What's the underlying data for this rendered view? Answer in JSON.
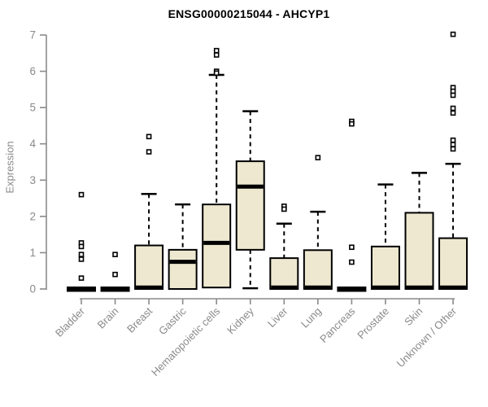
{
  "chart_data": {
    "type": "boxplot",
    "title": "ENSG00000215044 - AHCYP1",
    "ylabel": "Expression",
    "xlabel": "",
    "ylim": [
      0,
      7
    ],
    "yticks": [
      0,
      1,
      2,
      3,
      4,
      5,
      6,
      7
    ],
    "grid": false,
    "legend": "none",
    "categories": [
      "Bladder",
      "Brain",
      "Breast",
      "Gastric",
      "Hematopoietic cells",
      "Kidney",
      "Liver",
      "Lung",
      "Pancreas",
      "Prostate",
      "Skin",
      "Unknown / Other"
    ],
    "boxes": [
      {
        "category": "Bladder",
        "whisker_low": 0,
        "q1": 0,
        "median": 0,
        "q3": 0,
        "whisker_high": 0,
        "outliers": [
          2.6,
          1.27,
          1.17,
          0.95,
          0.82,
          0.3
        ]
      },
      {
        "category": "Brain",
        "whisker_low": 0,
        "q1": 0,
        "median": 0,
        "q3": 0,
        "whisker_high": 0,
        "outliers": [
          0.95,
          0.4
        ]
      },
      {
        "category": "Breast",
        "whisker_low": 0,
        "q1": 0,
        "median": 0.04,
        "q3": 1.2,
        "whisker_high": 2.62,
        "outliers": [
          4.2,
          3.78
        ]
      },
      {
        "category": "Gastric",
        "whisker_low": 0,
        "q1": 0,
        "median": 0.75,
        "q3": 1.08,
        "whisker_high": 2.33,
        "outliers": []
      },
      {
        "category": "Hematopoietic cells",
        "whisker_low": 0,
        "q1": 0.04,
        "median": 1.27,
        "q3": 2.33,
        "whisker_high": 5.9,
        "outliers": [
          6.57,
          6.45,
          6.0,
          5.95
        ]
      },
      {
        "category": "Kidney",
        "whisker_low": 0.02,
        "q1": 1.08,
        "median": 2.82,
        "q3": 3.52,
        "whisker_high": 4.9,
        "outliers": []
      },
      {
        "category": "Liver",
        "whisker_low": 0,
        "q1": 0,
        "median": 0.04,
        "q3": 0.85,
        "whisker_high": 1.8,
        "outliers": [
          2.28,
          2.2
        ]
      },
      {
        "category": "Lung",
        "whisker_low": 0,
        "q1": 0,
        "median": 0.04,
        "q3": 1.07,
        "whisker_high": 2.13,
        "outliers": [
          3.62
        ]
      },
      {
        "category": "Pancreas",
        "whisker_low": 0,
        "q1": 0,
        "median": 0,
        "q3": 0,
        "whisker_high": 0,
        "outliers": [
          4.62,
          4.55,
          1.15,
          0.74
        ]
      },
      {
        "category": "Prostate",
        "whisker_low": 0,
        "q1": 0,
        "median": 0.04,
        "q3": 1.17,
        "whisker_high": 2.88,
        "outliers": []
      },
      {
        "category": "Skin",
        "whisker_low": 0,
        "q1": 0,
        "median": 0.04,
        "q3": 2.1,
        "whisker_high": 3.2,
        "outliers": []
      },
      {
        "category": "Unknown / Other",
        "whisker_low": 0,
        "q1": 0,
        "median": 0.04,
        "q3": 1.4,
        "whisker_high": 3.45,
        "outliers": [
          7.02,
          5.55,
          5.45,
          5.34,
          4.98,
          4.85,
          4.1,
          3.98,
          3.86
        ]
      }
    ],
    "colors": {
      "box_fill": "#EDE8CF",
      "box_border": "#000000",
      "median": "#000000",
      "whisker": "#000000",
      "outlier_stroke": "#000000",
      "axis": "#8a8a8a",
      "tick_label": "#8a8a8a",
      "title": "#000000"
    }
  }
}
